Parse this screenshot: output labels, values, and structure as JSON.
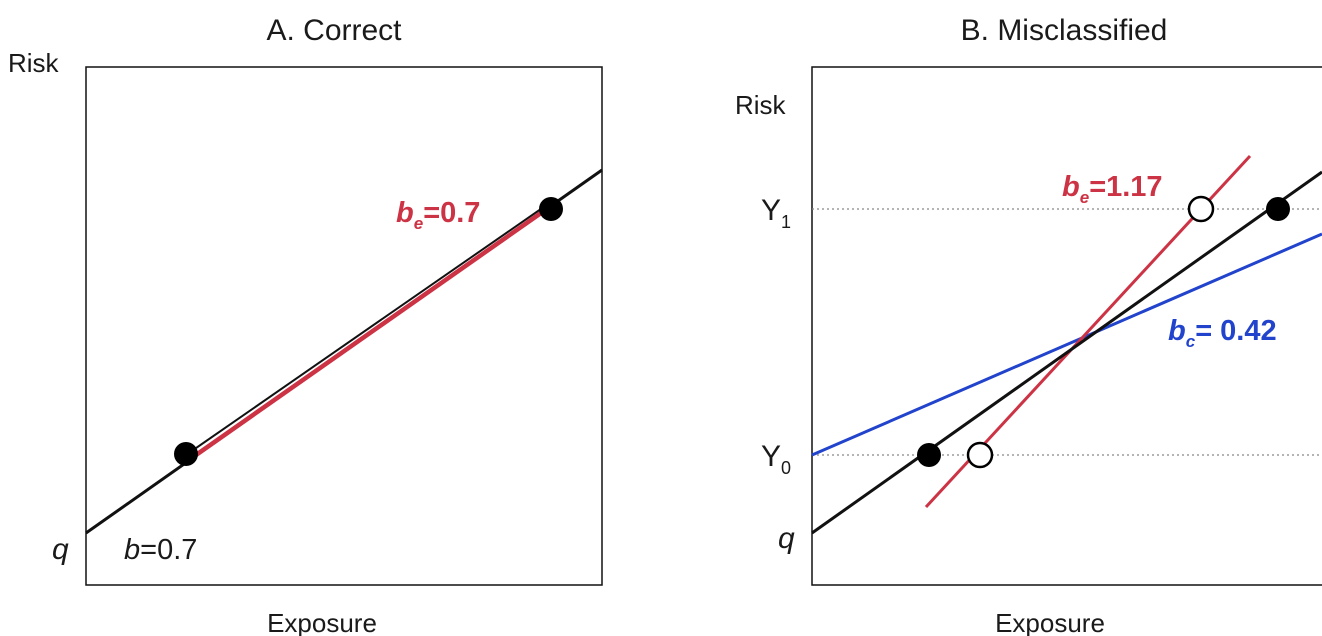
{
  "panels": [
    {
      "title": "A. Correct",
      "y_axis_label": "Risk",
      "x_axis_label": "Exposure",
      "intercept_label": "q",
      "true_slope": {
        "symbol": "b",
        "text": "=0.7"
      },
      "estimated_slope": {
        "symbol": "b",
        "subscript": "e",
        "text": "=0.7"
      }
    },
    {
      "title": "B. Misclassified",
      "y_axis_label": "Risk",
      "x_axis_label": "Exposure",
      "intercept_label": "q",
      "y1_label": {
        "base": "Y",
        "subscript": "1"
      },
      "y0_label": {
        "base": "Y",
        "subscript": "0"
      },
      "estimated_slope": {
        "symbol": "b",
        "subscript": "e",
        "text": "=1.17"
      },
      "classified_slope": {
        "symbol": "b",
        "subscript": "c",
        "text": "= 0.42"
      }
    }
  ],
  "colors": {
    "true_line": "#111111",
    "estimated_line": "#cc3344",
    "classified_line": "#2244cc",
    "frame": "#111111",
    "reference_line": "#888888"
  }
}
